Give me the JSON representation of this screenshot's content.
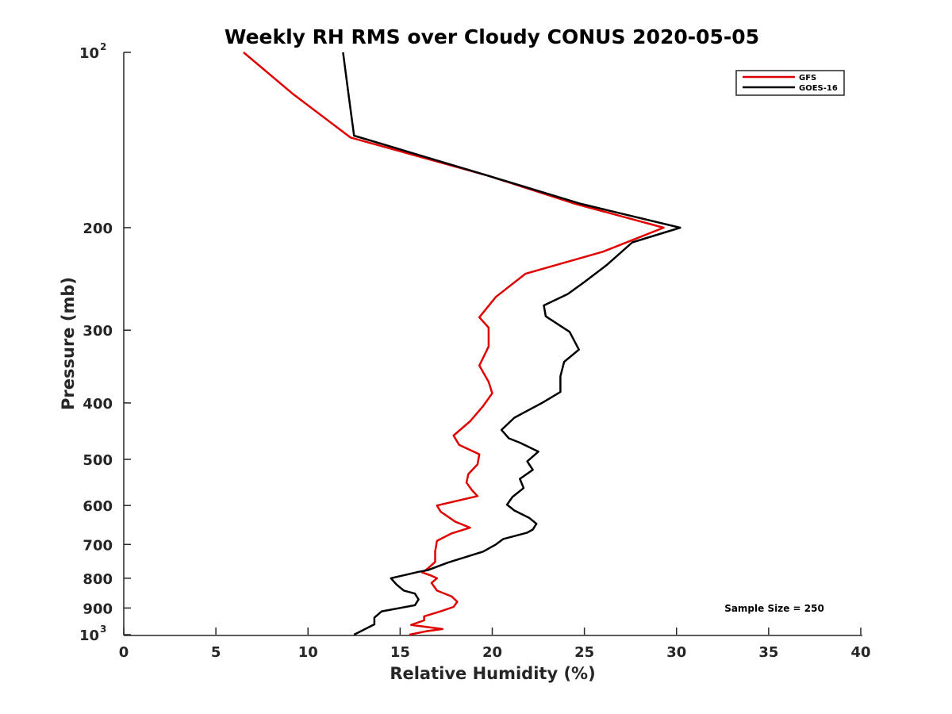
{
  "chart_data": {
    "type": "line",
    "title": "Weekly RH RMS over Cloudy CONUS 2020-05-05",
    "xlabel": "Relative Humidity (%)",
    "ylabel": "Pressure (mb)",
    "xlim": [
      0,
      40
    ],
    "ylim": [
      100,
      1000
    ],
    "y_scale": "log",
    "y_reversed": true,
    "grid": false,
    "legend_position": "top-right",
    "x_ticks": [
      "0",
      "5",
      "10",
      "15",
      "20",
      "25",
      "30",
      "35",
      "40"
    ],
    "y_ticks": [
      {
        "value": 100,
        "base": "10",
        "exp": "2"
      },
      {
        "value": 200,
        "label": "200"
      },
      {
        "value": 300,
        "label": "300"
      },
      {
        "value": 400,
        "label": "400"
      },
      {
        "value": 500,
        "label": "500"
      },
      {
        "value": 600,
        "label": "600"
      },
      {
        "value": 700,
        "label": "700"
      },
      {
        "value": 800,
        "label": "800"
      },
      {
        "value": 900,
        "label": "900"
      },
      {
        "value": 1000,
        "base": "10",
        "exp": "3"
      }
    ],
    "annotation": "Sample Size = 250",
    "series": [
      {
        "name": "GFS",
        "color": "#e00000",
        "points": [
          [
            6.5,
            100
          ],
          [
            9.2,
            118
          ],
          [
            12.3,
            140
          ],
          [
            19.8,
            163
          ],
          [
            24.5,
            182
          ],
          [
            29.3,
            200
          ],
          [
            26.0,
            220
          ],
          [
            21.8,
            240
          ],
          [
            20.2,
            263
          ],
          [
            19.3,
            285
          ],
          [
            19.8,
            297
          ],
          [
            19.8,
            320
          ],
          [
            19.3,
            345
          ],
          [
            19.8,
            368
          ],
          [
            20.0,
            385
          ],
          [
            19.5,
            405
          ],
          [
            18.8,
            430
          ],
          [
            17.9,
            455
          ],
          [
            18.2,
            472
          ],
          [
            19.3,
            490
          ],
          [
            19.2,
            510
          ],
          [
            18.7,
            530
          ],
          [
            18.6,
            548
          ],
          [
            18.9,
            565
          ],
          [
            19.2,
            578
          ],
          [
            17.0,
            600
          ],
          [
            17.2,
            615
          ],
          [
            18.0,
            640
          ],
          [
            18.8,
            655
          ],
          [
            17.8,
            670
          ],
          [
            17.0,
            690
          ],
          [
            16.9,
            720
          ],
          [
            16.9,
            750
          ],
          [
            16.5,
            770
          ],
          [
            16.2,
            782
          ],
          [
            16.7,
            792
          ],
          [
            17.0,
            800
          ],
          [
            16.7,
            815
          ],
          [
            17.0,
            840
          ],
          [
            17.8,
            860
          ],
          [
            18.1,
            878
          ],
          [
            17.9,
            896
          ],
          [
            17.2,
            912
          ],
          [
            16.3,
            930
          ],
          [
            16.3,
            945
          ],
          [
            15.6,
            962
          ],
          [
            17.3,
            978
          ],
          [
            16.4,
            987
          ],
          [
            15.5,
            1000
          ]
        ]
      },
      {
        "name": "GOES-16",
        "color": "#000000",
        "points": [
          [
            11.9,
            100
          ],
          [
            12.2,
            118
          ],
          [
            12.5,
            139
          ],
          [
            16.0,
            150
          ],
          [
            19.8,
            163
          ],
          [
            24.8,
            182
          ],
          [
            30.2,
            200
          ],
          [
            27.6,
            212
          ],
          [
            26.2,
            232
          ],
          [
            25.0,
            248
          ],
          [
            24.1,
            260
          ],
          [
            22.8,
            272
          ],
          [
            22.9,
            284
          ],
          [
            24.2,
            302
          ],
          [
            24.7,
            324
          ],
          [
            23.9,
            340
          ],
          [
            23.7,
            360
          ],
          [
            23.7,
            383
          ],
          [
            22.7,
            400
          ],
          [
            21.2,
            424
          ],
          [
            20.5,
            445
          ],
          [
            20.9,
            460
          ],
          [
            21.5,
            468
          ],
          [
            22.5,
            485
          ],
          [
            21.9,
            504
          ],
          [
            22.2,
            521
          ],
          [
            21.5,
            540
          ],
          [
            21.7,
            560
          ],
          [
            21.1,
            580
          ],
          [
            20.8,
            598
          ],
          [
            21.2,
            612
          ],
          [
            22.0,
            630
          ],
          [
            22.4,
            645
          ],
          [
            22.2,
            660
          ],
          [
            21.9,
            668
          ],
          [
            20.6,
            685
          ],
          [
            20.2,
            700
          ],
          [
            19.5,
            720
          ],
          [
            17.6,
            752
          ],
          [
            16.5,
            775
          ],
          [
            16.0,
            780
          ],
          [
            14.5,
            800
          ],
          [
            14.8,
            820
          ],
          [
            15.2,
            840
          ],
          [
            15.8,
            850
          ],
          [
            16.0,
            870
          ],
          [
            15.8,
            890
          ],
          [
            14.0,
            912
          ],
          [
            13.6,
            935
          ],
          [
            13.6,
            960
          ],
          [
            12.5,
            1000
          ]
        ]
      }
    ]
  }
}
